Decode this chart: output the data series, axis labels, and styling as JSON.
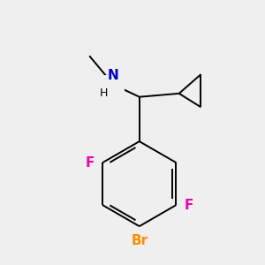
{
  "background_color": "#efefef",
  "atom_colors": {
    "N": "#0000cd",
    "F": "#ee00aa",
    "Br": "#ff8c00",
    "C": "#000000",
    "H": "#000000"
  },
  "font_size_atoms": 11,
  "font_size_small": 9,
  "lw": 1.4
}
